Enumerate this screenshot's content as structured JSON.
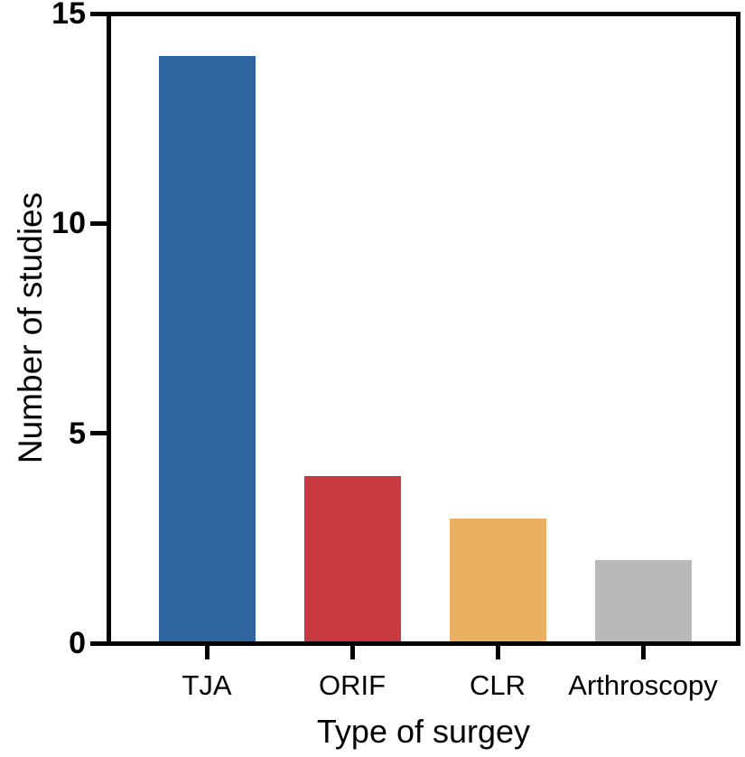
{
  "chart_data": {
    "type": "bar",
    "title": "",
    "categories": [
      "TJA",
      "ORIF",
      "CLR",
      "Arthroscopy"
    ],
    "values": [
      14,
      4,
      3,
      2
    ],
    "bar_colors": [
      "#2e65a0",
      "#c8393f",
      "#eab163",
      "#b9b9b9"
    ],
    "xlabel": "Type of surgey",
    "ylabel": "Number of studies",
    "ylim": [
      0,
      15
    ],
    "yticks": [
      0,
      5,
      10,
      15
    ],
    "grid": false,
    "legend_position": "none",
    "frame": "full-box",
    "axis_color": "#000000",
    "background_color": "#ffffff"
  }
}
